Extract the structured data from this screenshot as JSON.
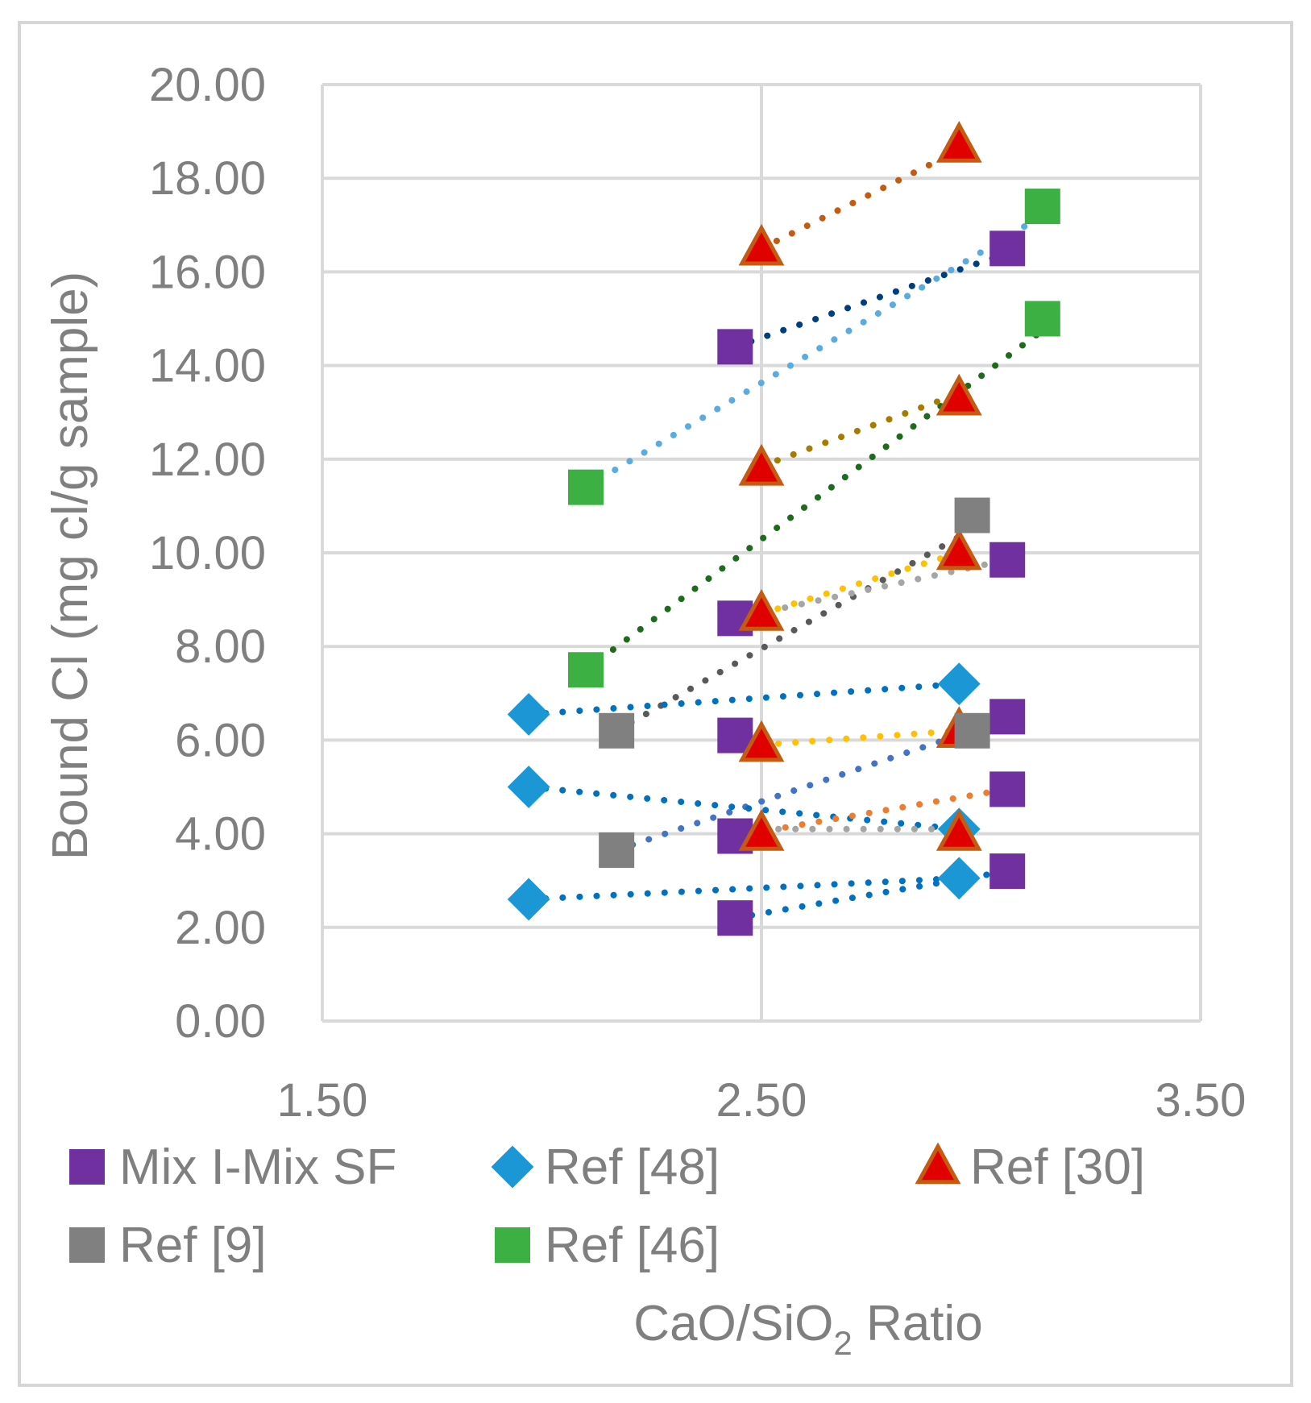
{
  "chart_data": {
    "type": "scatter",
    "ylabel": "Bound Cl (mg cl/g sample)",
    "xlabel_parts": {
      "main": "CaO/SiO",
      "sub": "2",
      "tail": " Ratio"
    },
    "xlim": [
      1.5,
      3.5
    ],
    "ylim": [
      0,
      20
    ],
    "x_ticks": [
      1.5,
      2.5,
      3.5
    ],
    "x_tick_labels": [
      "1.50",
      "2.50",
      "3.50"
    ],
    "y_ticks": [
      0,
      2,
      4,
      6,
      8,
      10,
      12,
      14,
      16,
      18,
      20
    ],
    "y_tick_labels": [
      "0.00",
      "2.00",
      "4.00",
      "6.00",
      "8.00",
      "10.00",
      "12.00",
      "14.00",
      "16.00",
      "18.00",
      "20.00"
    ],
    "gridlines": true,
    "legend_position": "bottom",
    "series": [
      {
        "name": "Mix I-Mix SF",
        "marker": "square",
        "color": "#7030a0",
        "points": [
          [
            2.44,
            14.4
          ],
          [
            2.44,
            8.6
          ],
          [
            2.44,
            6.1
          ],
          [
            2.44,
            3.95
          ],
          [
            2.44,
            2.2
          ],
          [
            3.06,
            16.5
          ],
          [
            3.06,
            9.85
          ],
          [
            3.06,
            6.5
          ],
          [
            3.06,
            4.95
          ],
          [
            3.06,
            3.2
          ]
        ]
      },
      {
        "name": "Ref [48]",
        "marker": "diamond",
        "color": "#1c97d6",
        "points": [
          [
            1.97,
            6.55
          ],
          [
            1.97,
            5.0
          ],
          [
            1.97,
            2.6
          ],
          [
            2.95,
            7.2
          ],
          [
            2.95,
            4.1
          ],
          [
            2.95,
            3.05
          ]
        ]
      },
      {
        "name": "Ref [30]",
        "marker": "triangle",
        "color": "#e00000",
        "edge_color": "#c55a11",
        "points": [
          [
            2.5,
            16.5
          ],
          [
            2.5,
            11.8
          ],
          [
            2.5,
            8.7
          ],
          [
            2.5,
            5.9
          ],
          [
            2.5,
            4.0
          ],
          [
            2.95,
            18.7
          ],
          [
            2.95,
            13.3
          ],
          [
            2.95,
            10.0
          ],
          [
            2.95,
            6.2
          ],
          [
            2.95,
            4.0
          ]
        ]
      },
      {
        "name": "Ref [9]",
        "marker": "square",
        "color": "#808080",
        "points": [
          [
            2.17,
            6.2
          ],
          [
            2.17,
            3.65
          ],
          [
            2.98,
            10.8
          ],
          [
            2.98,
            6.2
          ]
        ]
      },
      {
        "name": "Ref [46]",
        "marker": "square",
        "color": "#3cb043",
        "points": [
          [
            2.1,
            11.4
          ],
          [
            2.1,
            7.5
          ],
          [
            3.14,
            17.4
          ],
          [
            3.14,
            15.0
          ]
        ]
      }
    ],
    "trendlines": [
      {
        "color": "#c55a11",
        "from": [
          2.5,
          16.5
        ],
        "to": [
          2.95,
          18.6
        ]
      },
      {
        "color": "#003f7f",
        "from": [
          2.44,
          14.4
        ],
        "to": [
          3.06,
          16.4
        ]
      },
      {
        "color": "#5aace0",
        "from": [
          2.1,
          11.4
        ],
        "to": [
          3.14,
          17.2
        ]
      },
      {
        "color": "#1e6b1e",
        "from": [
          2.1,
          7.5
        ],
        "to": [
          3.14,
          14.75
        ]
      },
      {
        "color": "#a67c00",
        "from": [
          2.5,
          11.85
        ],
        "to": [
          2.95,
          13.4
        ]
      },
      {
        "color": "#595959",
        "from": [
          2.17,
          6.2
        ],
        "to": [
          2.98,
          10.5
        ]
      },
      {
        "color": "#ffc000",
        "from": [
          2.5,
          8.7
        ],
        "to": [
          2.95,
          10.0
        ]
      },
      {
        "color": "#a5a5a5",
        "from": [
          2.44,
          8.6
        ],
        "to": [
          3.06,
          9.85
        ]
      },
      {
        "color": "#0070c0",
        "from": [
          1.97,
          6.55
        ],
        "to": [
          2.95,
          7.2
        ]
      },
      {
        "color": "#ffc000",
        "from": [
          2.5,
          5.9
        ],
        "to": [
          2.95,
          6.2
        ]
      },
      {
        "color": "#4472c4",
        "from": [
          2.17,
          3.65
        ],
        "to": [
          2.98,
          6.2
        ]
      },
      {
        "color": "#0070c0",
        "from": [
          1.97,
          5.0
        ],
        "to": [
          2.95,
          4.1
        ]
      },
      {
        "color": "#ed7d31",
        "from": [
          2.44,
          3.95
        ],
        "to": [
          3.06,
          4.95
        ]
      },
      {
        "color": "#a5a5a5",
        "from": [
          2.5,
          4.1
        ],
        "to": [
          2.95,
          4.1
        ]
      },
      {
        "color": "#0070c0",
        "from": [
          1.97,
          2.6
        ],
        "to": [
          2.95,
          3.05
        ]
      },
      {
        "color": "#0070c0",
        "from": [
          2.44,
          2.2
        ],
        "to": [
          3.06,
          3.2
        ]
      }
    ]
  }
}
